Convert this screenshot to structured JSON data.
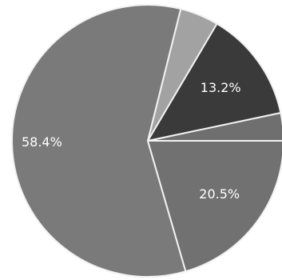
{
  "chart_data": {
    "type": "pie",
    "start_angle_deg": 0,
    "direction": "counterclockwise",
    "slices": [
      {
        "label": "",
        "value": 3.3,
        "color": "#6f6f6f"
      },
      {
        "label": "13.2%",
        "value": 13.2,
        "color": "#3a3a3a"
      },
      {
        "label": "",
        "value": 4.6,
        "color": "#a2a2a2"
      },
      {
        "label": "58.4%",
        "value": 58.4,
        "color": "#7a7a7a"
      },
      {
        "label": "20.5%",
        "value": 20.5,
        "color": "#717171"
      }
    ]
  }
}
